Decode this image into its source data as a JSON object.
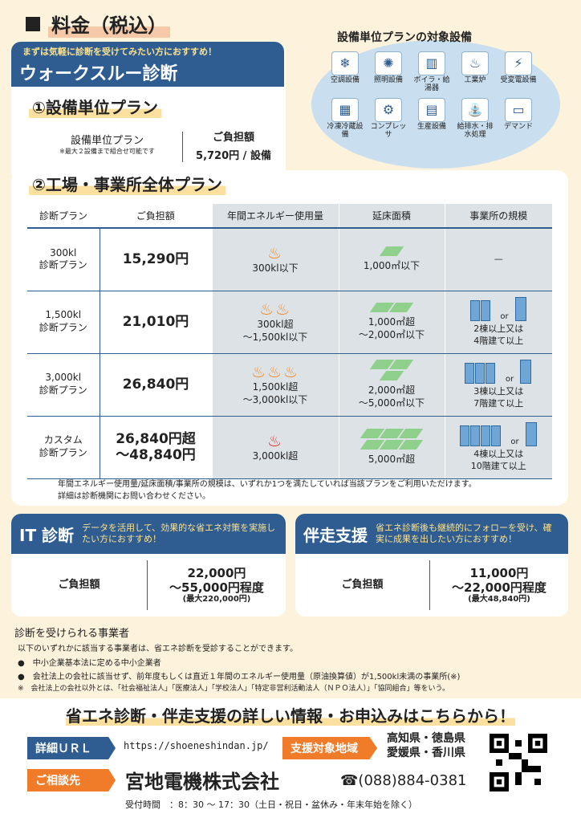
{
  "page": {
    "title": "料金（税込）"
  },
  "walkthrough": {
    "sub": "まずは気軽に診断を受けてみたい方におすすめ！",
    "title": "ウォークスルー診断",
    "plan1_title": "①設備単位プラン",
    "plan1_name": "設備単位プラン",
    "plan1_note": "※最大２設備まで組合せ可能です",
    "plan1_fee_label": "ご負担額",
    "plan1_fee": "5,720円 / 設備",
    "plan2_title": "②工場・事業所全体プラン"
  },
  "equipment": {
    "title": "設備単位プランの対象設備",
    "items": [
      {
        "label": "空調設備",
        "icon": "aircon-icon",
        "g": "❄"
      },
      {
        "label": "照明設備",
        "icon": "bulb-icon",
        "g": "✺"
      },
      {
        "label": "ボイラ・給湯器",
        "icon": "boiler-icon",
        "g": "▥"
      },
      {
        "label": "工業炉",
        "icon": "furnace-icon",
        "g": "♨"
      },
      {
        "label": "受変電設備",
        "icon": "substation-icon",
        "g": "⚡"
      },
      {
        "label": "冷凍冷蔵設備",
        "icon": "freezer-icon",
        "g": "▦"
      },
      {
        "label": "コンプレッサ",
        "icon": "compressor-icon",
        "g": "⚙"
      },
      {
        "label": "生産設備",
        "icon": "machine-icon",
        "g": "▤"
      },
      {
        "label": "給排水・排水処理",
        "icon": "faucet-icon",
        "g": "⛲"
      },
      {
        "label": "デマンド",
        "icon": "monitor-icon",
        "g": "▭"
      }
    ]
  },
  "table": {
    "headers": [
      "診断プラン",
      "ご負担額",
      "年間エネルギー使用量",
      "延床面積",
      "事業所の規模"
    ],
    "rows": [
      {
        "plan": "300kl\n診断プラン",
        "fee": "15,290円",
        "energy": "300kl以下",
        "area": "1,000㎡以下",
        "scale": "—",
        "fires": 1,
        "tiles": 1,
        "blds": 0
      },
      {
        "plan": "1,500kl\n診断プラン",
        "fee": "21,010円",
        "energy": "300kl超\n～1,500kl以下",
        "area": "1,000㎡超\n～2,000㎡以下",
        "scale": "2棟以上又は\n4階建て以上",
        "fires": 2,
        "tiles": 2,
        "blds": 2
      },
      {
        "plan": "3,000kl\n診断プラン",
        "fee": "26,840円",
        "energy": "1,500kl超\n～3,000kl以下",
        "area": "2,000㎡超\n～5,000㎡以下",
        "scale": "3棟以上又は\n7階建て以上",
        "fires": 3,
        "tiles": 3,
        "blds": 3
      },
      {
        "plan": "カスタム\n診断プラン",
        "fee": "26,840円超\n～48,840円",
        "energy": "3,000kl超",
        "area": "5,000㎡超",
        "scale": "4棟以上又は\n10階建て以上",
        "fires": 1,
        "tiles": 6,
        "blds": 4
      }
    ],
    "or": "or",
    "note1": "年間エネルギー使用量/延床面積/事業所の規模は、いずれか1つを満たしていれば当該プランをご利用いただけます。",
    "note2": "詳細は診断機関にお問い合わせください。"
  },
  "it": {
    "name": "IT 診断",
    "desc": "データを活用して、効果的な省エネ対策を実施したい方におすすめ！",
    "fee_label": "ご負担額",
    "fee1": "22,000円",
    "fee2": "～55,000円程度",
    "fee3": "(最大220,000円)"
  },
  "support": {
    "name": "伴走支援",
    "desc": "省エネ診断後も継続的にフォローを受け、確実に成果を出したい方におすすめ！",
    "fee_label": "ご負担額",
    "fee1": "11,000円",
    "fee2": "～22,000円程度",
    "fee3": "(最大48,840円)"
  },
  "eligible": {
    "title": "診断を受けられる事業者",
    "intro": "以下のいずれかに該当する事業者は、省エネ診断を受診することができます。",
    "b1": "●　中小企業基本法に定める中小企業者",
    "b2": "●　会社法上の会社に該当せず、前年度もしくは直近１年間のエネルギー使用量（原油換算値）が1,500kl未満の事業所(※)",
    "n": "※　会社法上の会社以外とは、「社会福祉法人」「医療法人」「学校法人」「特定非営利活動法人（ＮＰＯ法人）」「協同組合」等をいう。"
  },
  "footer": {
    "headline": "省エネ診断・伴走支援の詳しい情報・お申込みはこちらから！",
    "url_label": "詳細ＵＲＬ",
    "url": "https://shoeneshindan.jp/",
    "area_label": "支援対象地域",
    "area": "高知県・徳島県\n愛媛県・香川県",
    "contact_label": "ご相談先",
    "company": "宮地電機株式会社",
    "tel": "☎(088)884-0381",
    "hours": "受付時間　：8：30 ～ 17：30（土日・祝日・盆休み・年末年始を除く）"
  }
}
